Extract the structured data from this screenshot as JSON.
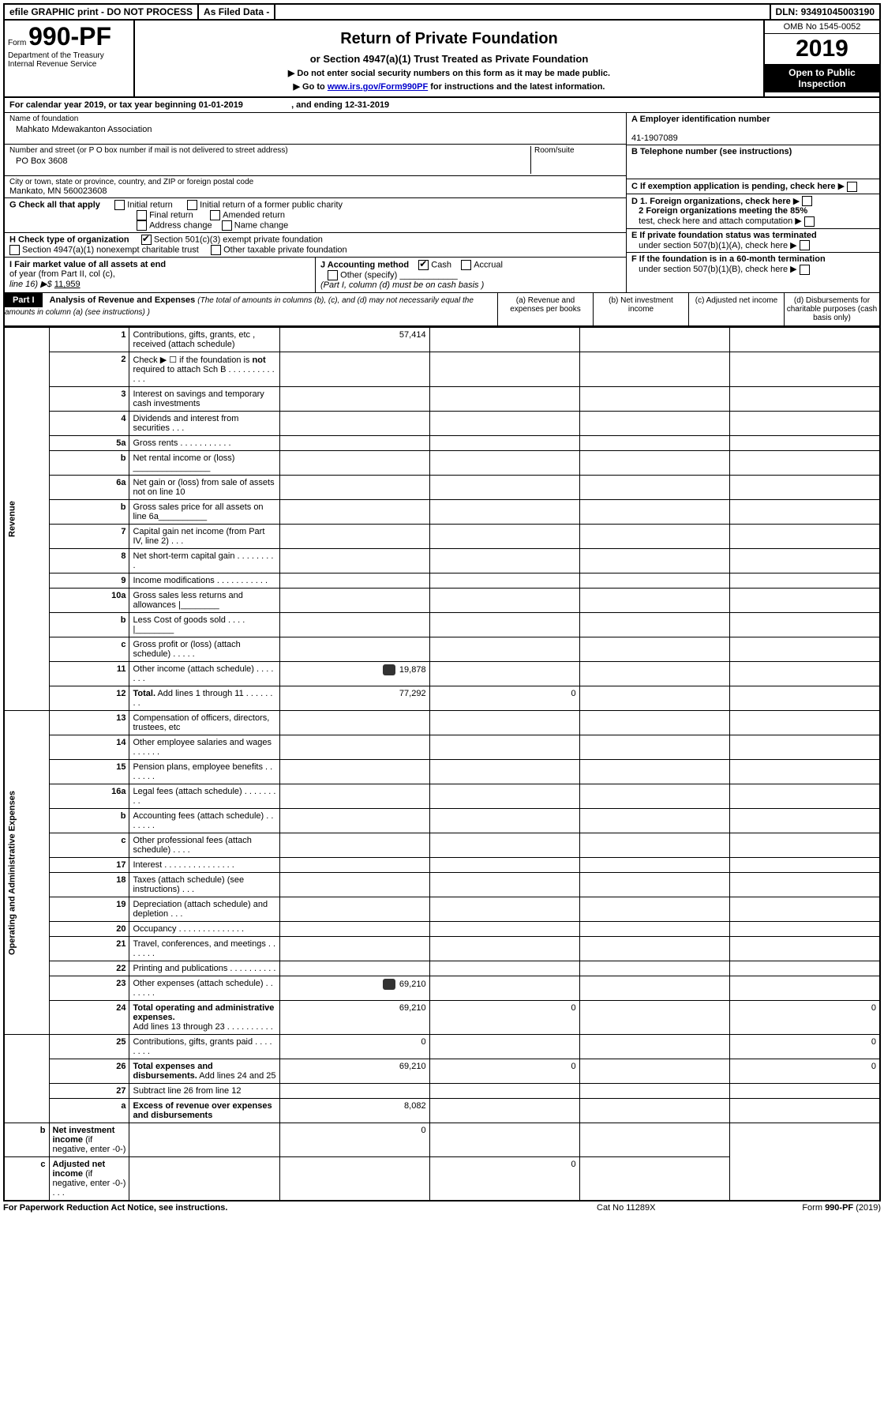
{
  "topbar": {
    "efile": "efile GRAPHIC print - DO NOT PROCESS",
    "asfiled": "As Filed Data -",
    "dln_label": "DLN:",
    "dln": "93491045003190"
  },
  "form_id": {
    "prefix": "Form",
    "number": "990-PF",
    "dept": "Department of the Treasury",
    "irs": "Internal Revenue Service"
  },
  "header": {
    "title": "Return of Private Foundation",
    "subtitle": "or Section 4947(a)(1) Trust Treated as Private Foundation",
    "note1": "▶ Do not enter social security numbers on this form as it may be made public.",
    "note2_prefix": "▶ Go to ",
    "note2_link": "www.irs.gov/Form990PF",
    "note2_suffix": " for instructions and the latest information.",
    "omb": "OMB No 1545-0052",
    "year": "2019",
    "open1": "Open to Public",
    "open2": "Inspection"
  },
  "calendar": {
    "text1": "For calendar year 2019, or tax year beginning ",
    "begin": "01-01-2019",
    "text2": ", and ending ",
    "end": "12-31-2019"
  },
  "entity": {
    "name_lbl": "Name of foundation",
    "name": "Mahkato Mdewakanton Association",
    "addr_lbl": "Number and street (or P O  box number if mail is not delivered to street address)",
    "addr": "PO Box 3608",
    "room_lbl": "Room/suite",
    "city_lbl": "City or town, state or province, country, and ZIP or foreign postal code",
    "city": "Mankato, MN  560023608",
    "a_lbl": "A Employer identification number",
    "a_val": "41-1907089",
    "b_lbl": "B Telephone number (see instructions)",
    "c_lbl": "C If exemption application is pending, check here",
    "d1": "D 1. Foreign organizations, check here",
    "d2a": "2 Foreign organizations meeting the 85%",
    "d2b": "test, check here and attach computation",
    "e1": "E  If private foundation status was terminated",
    "e2": "under section 507(b)(1)(A), check here",
    "f1": "F  If the foundation is in a 60-month termination",
    "f2": "under section 507(b)(1)(B), check here"
  },
  "g": {
    "label": "G Check all that apply",
    "opts": [
      "Initial return",
      "Initial return of a former public charity",
      "Final return",
      "Amended return",
      "Address change",
      "Name change"
    ]
  },
  "h": {
    "label": "H Check type of organization",
    "opt1": "Section 501(c)(3) exempt private foundation",
    "opt2": "Section 4947(a)(1) nonexempt charitable trust",
    "opt3": "Other taxable private foundation"
  },
  "i": {
    "l1": "I Fair market value of all assets at end",
    "l2": "of year (from Part II, col  (c),",
    "l3a": "line 16) ▶$ ",
    "l3b": "11,959"
  },
  "j": {
    "label": "J Accounting method",
    "cash": "Cash",
    "accrual": "Accrual",
    "other": "Other (specify)",
    "note": "(Part I, column (d) must be on cash basis )"
  },
  "part1_hdr": {
    "part": "Part I",
    "title": "Analysis of Revenue and Expenses",
    "title_note": " (The total of amounts in columns (b), (c), and (d) may not necessarily equal the amounts in column (a) (see instructions) )",
    "col_a": "(a)   Revenue and expenses per books",
    "col_b": "(b)  Net investment income",
    "col_c": "(c)  Adjusted net income",
    "col_d": "(d)  Disbursements for charitable purposes (cash basis only)"
  },
  "side": {
    "revenue": "Revenue",
    "expenses": "Operating and Administrative Expenses"
  },
  "rows": [
    {
      "n": "1",
      "d": "Contributions, gifts, grants, etc , received (attach schedule)",
      "a": "57,414"
    },
    {
      "n": "2",
      "d": "Check ▶ ☐ if the foundation is <b>not</b> required to attach Sch  B     .   .   .   .   .   .   .   .   .   .   .   .   ."
    },
    {
      "n": "3",
      "d": "Interest on savings and temporary cash investments"
    },
    {
      "n": "4",
      "d": "Dividends and interest from securities        .   .   ."
    },
    {
      "n": "5a",
      "d": "Gross rents         .   .   .   .   .   .   .   .   .   .   ."
    },
    {
      "n": "b",
      "d": "Net rental income or (loss)  ________________"
    },
    {
      "n": "6a",
      "d": "Net gain or (loss) from sale of assets not on line 10"
    },
    {
      "n": "b",
      "d": "Gross sales price for all assets on line 6a__________"
    },
    {
      "n": "7",
      "d": "Capital gain net income (from Part IV, line 2)   .   .   ."
    },
    {
      "n": "8",
      "d": "Net short-term capital gain  .   .   .   .   .   .   .   .   ."
    },
    {
      "n": "9",
      "d": "Income modifications .   .   .   .   .   .   .   .   .   .   ."
    },
    {
      "n": "10a",
      "d": "Gross sales less returns and allowances |________"
    },
    {
      "n": "b",
      "d": "Less  Cost of goods sold    .   .   .   .  |________"
    },
    {
      "n": "c",
      "d": "Gross profit or (loss) (attach schedule)   .   .   .   .   ."
    },
    {
      "n": "11",
      "d": "Other income (attach schedule)    .   .   .   .   .   .   .",
      "a": "19,878",
      "icon": true
    },
    {
      "n": "12",
      "d": "<b>Total.</b> Add lines 1 through 11   .   .   .   .   .   .   .   .",
      "a": "77,292",
      "b": "0"
    },
    {
      "n": "13",
      "d": "Compensation of officers, directors, trustees, etc"
    },
    {
      "n": "14",
      "d": "Other employee salaries and wages    .   .   .   .   .   ."
    },
    {
      "n": "15",
      "d": "Pension plans, employee benefits  .   .   .   .   .   .   ."
    },
    {
      "n": "16a",
      "d": "Legal fees (attach schedule) .   .   .   .   .   .   .   .   ."
    },
    {
      "n": "b",
      "d": "Accounting fees (attach schedule) .   .   .   .   .   .   ."
    },
    {
      "n": "c",
      "d": "Other professional fees (attach schedule)    .   .   .   ."
    },
    {
      "n": "17",
      "d": "Interest  .   .   .   .   .   .   .   .   .   .   .   .   .   .   ."
    },
    {
      "n": "18",
      "d": "Taxes (attach schedule) (see instructions)     .   .   ."
    },
    {
      "n": "19",
      "d": "Depreciation (attach schedule) and depletion   .   .   ."
    },
    {
      "n": "20",
      "d": "Occupancy  .   .   .   .   .   .   .   .   .   .   .   .   .   ."
    },
    {
      "n": "21",
      "d": "Travel, conferences, and meetings .   .   .   .   .   .   ."
    },
    {
      "n": "22",
      "d": "Printing and publications .   .   .   .   .   .   .   .   .   ."
    },
    {
      "n": "23",
      "d": "Other expenses (attach schedule) .   .   .   .   .   .   .",
      "a": "69,210",
      "icon": true
    },
    {
      "n": "24",
      "d": "<b>Total operating and administrative expenses.</b><br>Add lines 13 through 23  .   .   .   .   .   .   .   .   .   .",
      "a": "69,210",
      "b": "0",
      "dd": "0"
    },
    {
      "n": "25",
      "d": "Contributions, gifts, grants paid  .   .   .   .   .   .   .   .",
      "a": "0",
      "dd": "0"
    },
    {
      "n": "26",
      "d": "<b>Total expenses and disbursements.</b> Add lines 24 and 25",
      "a": "69,210",
      "b": "0",
      "dd": "0"
    },
    {
      "n": "27",
      "d": "Subtract line 26 from line 12"
    },
    {
      "n": "a",
      "d": "<b>Excess of revenue over expenses and disbursements</b>",
      "a": "8,082"
    },
    {
      "n": "b",
      "d": "<b>Net investment income</b> (if negative, enter -0-)",
      "b": "0"
    },
    {
      "n": "c",
      "d": "<b>Adjusted net income</b> (if negative, enter -0-)  .   .   .",
      "c": "0"
    }
  ],
  "footer": {
    "left": "For Paperwork Reduction Act Notice, see instructions.",
    "center": "Cat  No  11289X",
    "right": "Form 990-PF (2019)",
    "right_bold": "990-PF"
  }
}
